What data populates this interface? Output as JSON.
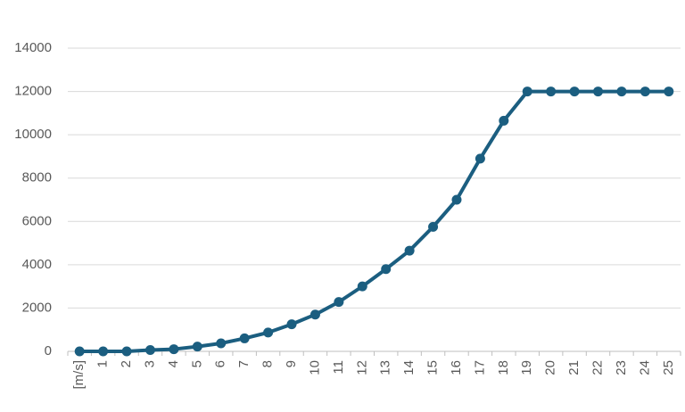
{
  "chart_data": {
    "type": "line",
    "categories": [
      "[m/s]",
      "1",
      "2",
      "3",
      "4",
      "5",
      "6",
      "7",
      "8",
      "9",
      "10",
      "11",
      "12",
      "13",
      "14",
      "15",
      "16",
      "17",
      "18",
      "19",
      "20",
      "21",
      "22",
      "23",
      "24",
      "25"
    ],
    "series": [
      {
        "color": "#1b5e80",
        "values": [
          0,
          0,
          0,
          60,
          100,
          220,
          370,
          600,
          870,
          1250,
          1700,
          2280,
          3000,
          3800,
          4650,
          5750,
          7000,
          8900,
          10650,
          12000,
          12000,
          12000,
          12000,
          12000,
          12000,
          12000
        ]
      }
    ],
    "ylim": [
      0,
      14000
    ],
    "yticks": [
      0,
      2000,
      4000,
      6000,
      8000,
      10000,
      12000,
      14000
    ],
    "grid": true
  }
}
